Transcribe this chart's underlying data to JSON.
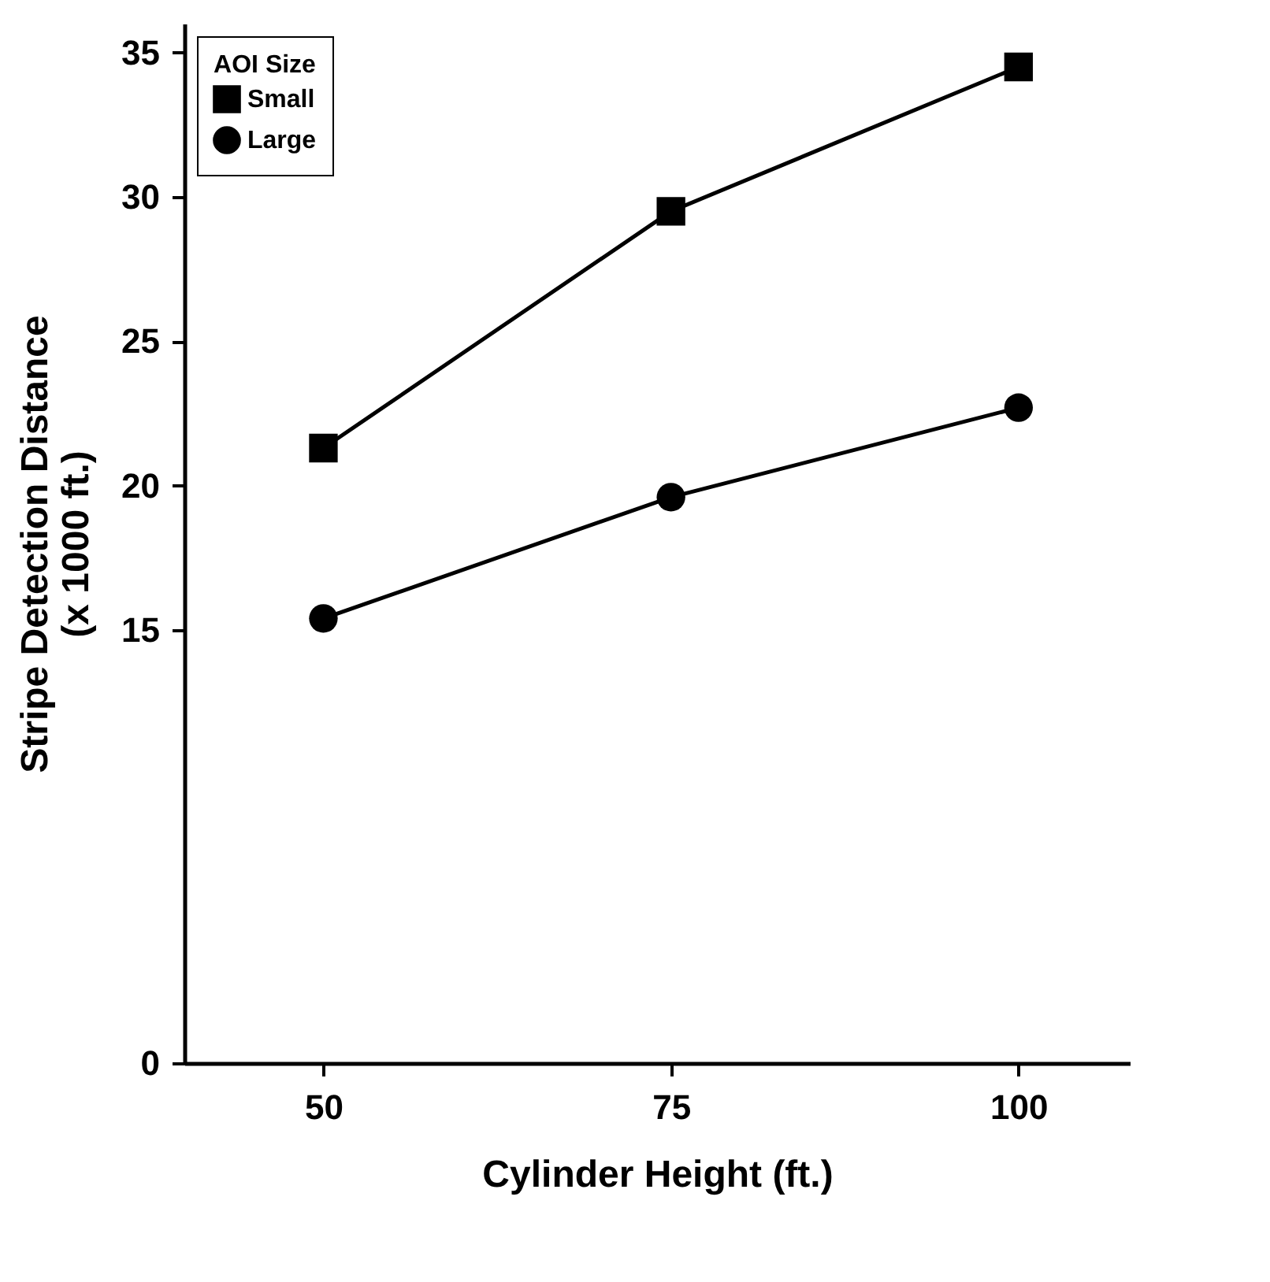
{
  "chart_data": {
    "type": "line",
    "xlabel": "Cylinder Height (ft.)",
    "ylabel": "Stripe Detection Distance\n(x 1000 ft.)",
    "legend_title": "AOI Size",
    "x": [
      50,
      75,
      100
    ],
    "series": [
      {
        "name": "Small",
        "color": "#000000",
        "marker": "square",
        "values": [
          21.3,
          29.5,
          34.5
        ]
      },
      {
        "name": "Large",
        "color": "#000000",
        "marker": "circle",
        "values": [
          15.4,
          19.6,
          22.7
        ]
      }
    ],
    "xlim": [
      40,
      108
    ],
    "xticks": [
      50,
      75,
      100
    ],
    "ylim": [
      0,
      36
    ],
    "yticks": [
      0,
      15,
      20,
      25,
      30,
      35
    ],
    "grid": false,
    "legend": "top left"
  }
}
